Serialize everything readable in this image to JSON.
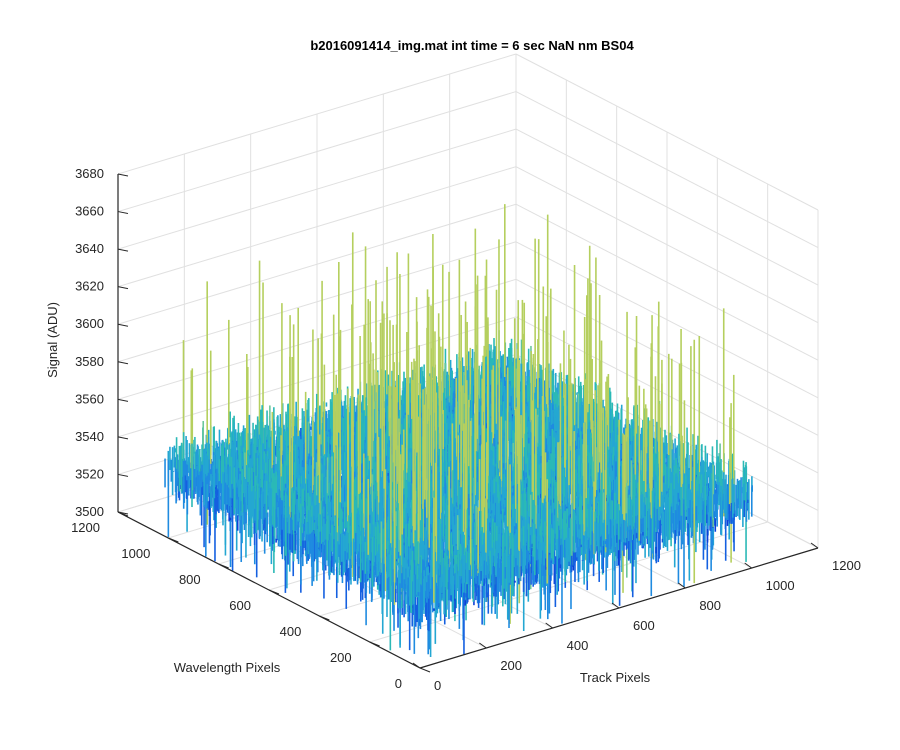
{
  "chart_data": {
    "type": "surface",
    "title": "b2016091414_img.mat int time = 6 sec  NaN nm BS04",
    "xlabel": "Track Pixels",
    "ylabel": "Wavelength Pixels",
    "zlabel": "Signal (ADU)",
    "xlim": [
      0,
      1200
    ],
    "ylim": [
      0,
      1200
    ],
    "zlim": [
      3500,
      3680
    ],
    "x_ticks": [
      "0",
      "200",
      "400",
      "600",
      "800",
      "1000",
      "1200"
    ],
    "y_ticks": [
      "0",
      "200",
      "400",
      "600",
      "800",
      "1000",
      "1200"
    ],
    "z_ticks": [
      "3500",
      "3520",
      "3540",
      "3560",
      "3580",
      "3600",
      "3620",
      "3640",
      "3660",
      "3680"
    ],
    "surface": {
      "x_extent": [
        0,
        1024
      ],
      "y_extent": [
        0,
        1024
      ],
      "mean_signal": 3535,
      "noise_range": [
        3500,
        3650
      ],
      "colormap": [
        "#0b3fd6",
        "#1560e0",
        "#1f8be0",
        "#24a7d2",
        "#2bb9b6",
        "#6cc79a",
        "#b5cf5e"
      ]
    },
    "grid": true,
    "colors": {
      "axis": "#262626",
      "grid": "#e0e0e0",
      "background": "#ffffff"
    }
  }
}
